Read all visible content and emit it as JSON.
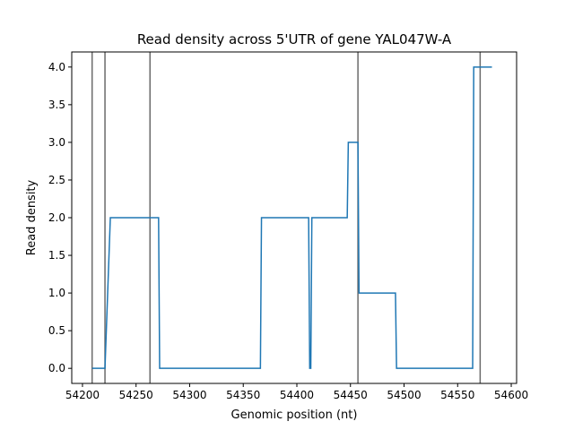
{
  "chart_data": {
    "type": "line",
    "title": "Read density across 5'UTR of gene YAL047W-A",
    "xlabel": "Genomic position (nt)",
    "ylabel": "Read density",
    "xlim": [
      54190,
      54605
    ],
    "ylim": [
      -0.2,
      4.2
    ],
    "x_ticks": [
      54200,
      54250,
      54300,
      54350,
      54400,
      54450,
      54500,
      54550,
      54600
    ],
    "x_tick_labels": [
      "54200",
      "54250",
      "54300",
      "54350",
      "54400",
      "54450",
      "54500",
      "54550",
      "54600"
    ],
    "y_ticks": [
      0.0,
      0.5,
      1.0,
      1.5,
      2.0,
      2.5,
      3.0,
      3.5,
      4.0
    ],
    "y_tick_labels": [
      "0.0",
      "0.5",
      "1.0",
      "1.5",
      "2.0",
      "2.5",
      "3.0",
      "3.5",
      "4.0"
    ],
    "vertical_lines": [
      54209,
      54221,
      54263,
      54457,
      54571
    ],
    "series": [
      {
        "color": "#1f77b4",
        "x": [
          54209,
          54221,
          54226,
          54271,
          54272,
          54366,
          54367,
          54411,
          54412,
          54413,
          54414,
          54447,
          54448,
          54457,
          54458,
          54492,
          54493,
          54564,
          54565,
          54582
        ],
        "y": [
          0,
          0,
          2,
          2,
          0,
          0,
          2,
          2,
          0,
          0,
          2,
          2,
          3,
          3,
          1,
          1,
          0,
          0,
          4,
          4
        ]
      }
    ],
    "vline_color": "#6b6b6b",
    "grid": false
  }
}
